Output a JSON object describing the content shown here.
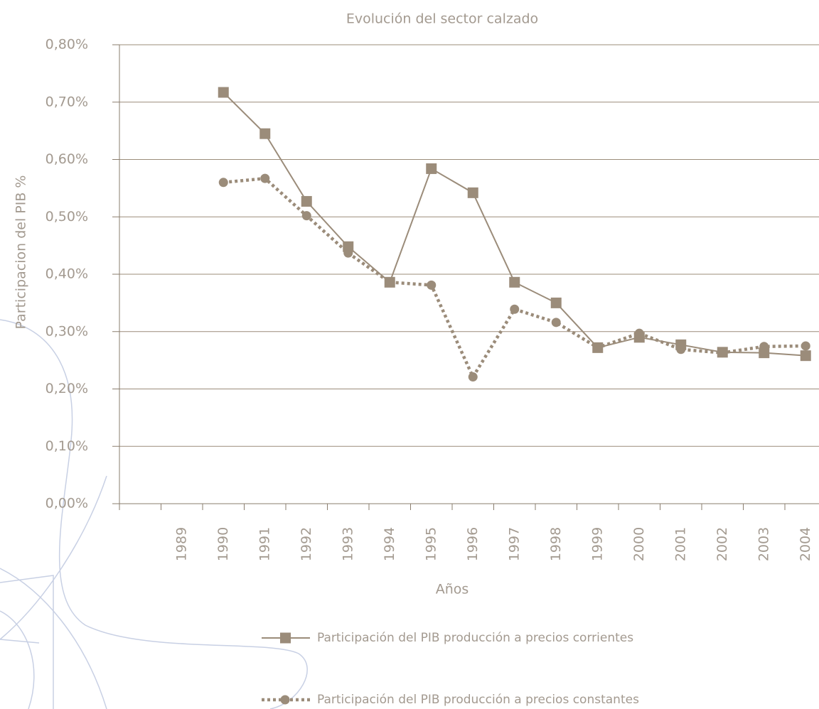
{
  "chart_data": {
    "type": "line",
    "title": "Evolución del sector calzado",
    "x_label": "Años",
    "y_label": "Participacion del PIB %",
    "categories": [
      null,
      "1989",
      "1990",
      "1991",
      "1992",
      "1993",
      "1994",
      "1995",
      "1996",
      "1997",
      "1998",
      "1999",
      "2000",
      "2001",
      "2002",
      "2003",
      "2004"
    ],
    "series": [
      {
        "name": "Participación del PIB producción a precios corrientes",
        "color": "#9b8c7a",
        "marker": "square",
        "line_style": "solid",
        "values": [
          null,
          null,
          0.717,
          0.645,
          0.527,
          0.448,
          0.386,
          0.584,
          0.542,
          0.386,
          0.35,
          0.272,
          0.29,
          0.277,
          0.264,
          0.263,
          0.258
        ]
      },
      {
        "name": "Participación del PIB producción a precios constantes",
        "color": "#9b8c7a",
        "marker": "circle",
        "line_style": "dotted",
        "values": [
          null,
          null,
          0.56,
          0.567,
          0.502,
          0.437,
          0.386,
          0.381,
          0.221,
          0.339,
          0.316,
          0.272,
          0.297,
          0.269,
          0.263,
          0.274,
          0.275
        ]
      }
    ],
    "ylim": [
      0,
      0.8
    ],
    "yticks": [
      {
        "value": 0,
        "label": "0,00%"
      },
      {
        "value": 0.1,
        "label": "0,10%"
      },
      {
        "value": 0.2,
        "label": "0,20%"
      },
      {
        "value": 0.3,
        "label": "0,30%"
      },
      {
        "value": 0.4,
        "label": "0,40%"
      },
      {
        "value": 0.5,
        "label": "0,50%"
      },
      {
        "value": 0.6,
        "label": "0,60%"
      },
      {
        "value": 0.7,
        "label": "0,70%"
      },
      {
        "value": 0.8,
        "label": "0,80%"
      }
    ],
    "grid": true
  }
}
